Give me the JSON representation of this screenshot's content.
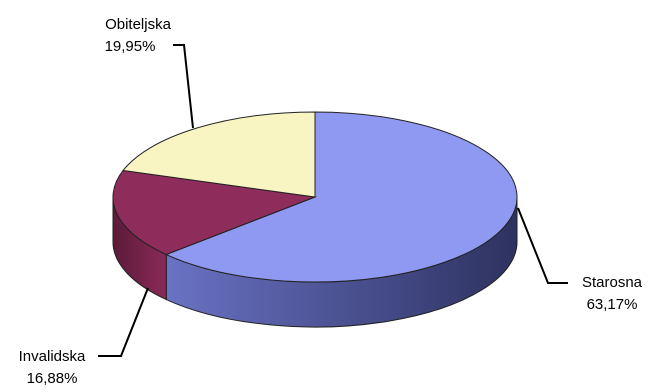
{
  "chart_data": {
    "type": "pie",
    "style": "3d",
    "categories": [
      "Starosna",
      "Invalidska",
      "Obiteljska"
    ],
    "values": [
      63.17,
      16.88,
      19.95
    ],
    "value_labels": [
      "63,17%",
      "16,88%",
      "19,95%"
    ],
    "colors": [
      "#9099f2",
      "#8e2c5b",
      "#f8f5c3"
    ],
    "side_colors": [
      "#3f4477",
      "#5a1836",
      "#b5b28a"
    ],
    "title": "",
    "legend": "none"
  }
}
